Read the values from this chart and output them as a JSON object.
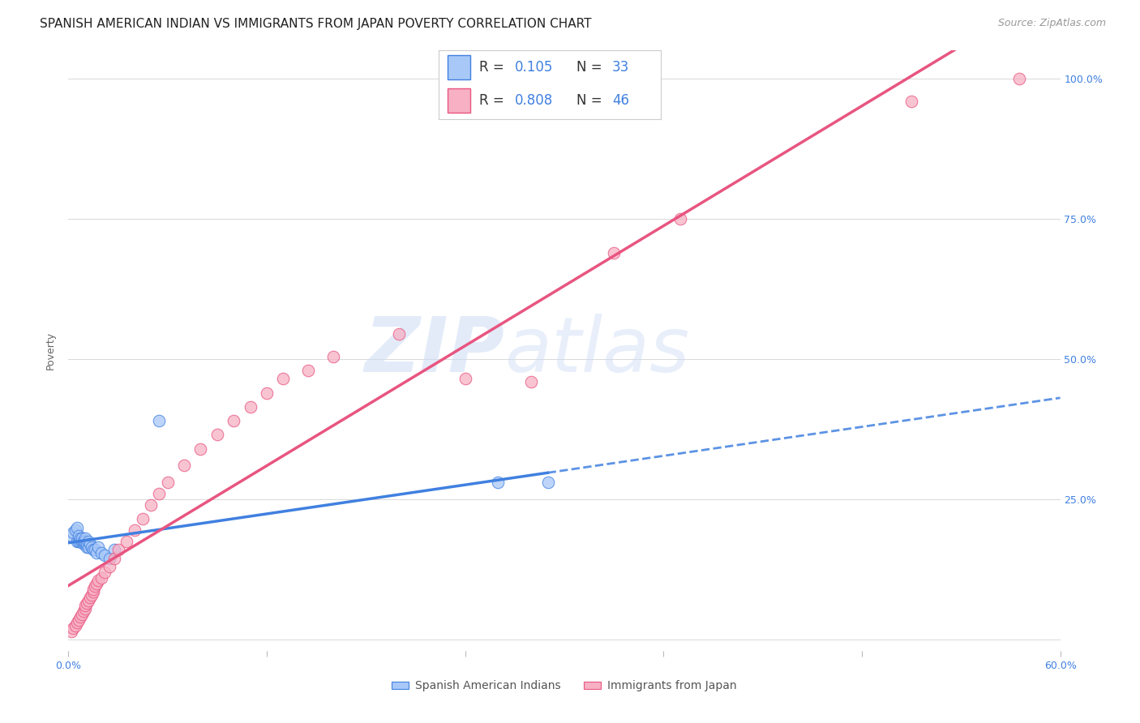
{
  "title": "SPANISH AMERICAN INDIAN VS IMMIGRANTS FROM JAPAN POVERTY CORRELATION CHART",
  "source": "Source: ZipAtlas.com",
  "ylabel": "Poverty",
  "xlim": [
    0.0,
    0.6
  ],
  "ylim": [
    -0.02,
    1.05
  ],
  "xticks": [
    0.0,
    0.12,
    0.24,
    0.36,
    0.48,
    0.6
  ],
  "xtick_labels": [
    "0.0%",
    "",
    "",
    "",
    "",
    "60.0%"
  ],
  "yticks": [
    0.0,
    0.25,
    0.5,
    0.75,
    1.0
  ],
  "ytick_labels": [
    "",
    "25.0%",
    "50.0%",
    "75.0%",
    "100.0%"
  ],
  "blue_color": "#a8c8f8",
  "pink_color": "#f7b0c4",
  "blue_line_color": "#4080e0",
  "pink_line_color": "#e85580",
  "grid_color": "#d8d8d8",
  "watermark1": "ZIP",
  "watermark2": "atlas",
  "series1_x": [
    0.002,
    0.003,
    0.004,
    0.005,
    0.005,
    0.006,
    0.006,
    0.007,
    0.007,
    0.008,
    0.008,
    0.009,
    0.009,
    0.01,
    0.01,
    0.01,
    0.011,
    0.011,
    0.012,
    0.012,
    0.013,
    0.014,
    0.015,
    0.016,
    0.017,
    0.018,
    0.02,
    0.022,
    0.025,
    0.028,
    0.055,
    0.26,
    0.29
  ],
  "series1_y": [
    0.185,
    0.19,
    0.195,
    0.175,
    0.2,
    0.175,
    0.185,
    0.175,
    0.18,
    0.175,
    0.18,
    0.17,
    0.175,
    0.17,
    0.175,
    0.18,
    0.165,
    0.17,
    0.165,
    0.175,
    0.17,
    0.165,
    0.16,
    0.16,
    0.155,
    0.165,
    0.155,
    0.15,
    0.145,
    0.16,
    0.39,
    0.28,
    0.28
  ],
  "series2_x": [
    0.002,
    0.003,
    0.004,
    0.005,
    0.006,
    0.007,
    0.008,
    0.009,
    0.01,
    0.01,
    0.011,
    0.012,
    0.013,
    0.014,
    0.015,
    0.015,
    0.016,
    0.017,
    0.018,
    0.02,
    0.022,
    0.025,
    0.028,
    0.03,
    0.035,
    0.04,
    0.045,
    0.05,
    0.055,
    0.06,
    0.07,
    0.08,
    0.09,
    0.1,
    0.11,
    0.12,
    0.13,
    0.145,
    0.16,
    0.2,
    0.24,
    0.28,
    0.33,
    0.37,
    0.51,
    0.575
  ],
  "series2_y": [
    0.015,
    0.02,
    0.025,
    0.03,
    0.035,
    0.04,
    0.045,
    0.05,
    0.055,
    0.06,
    0.065,
    0.07,
    0.075,
    0.08,
    0.085,
    0.09,
    0.095,
    0.1,
    0.105,
    0.11,
    0.12,
    0.13,
    0.145,
    0.16,
    0.175,
    0.195,
    0.215,
    0.24,
    0.26,
    0.28,
    0.31,
    0.34,
    0.365,
    0.39,
    0.415,
    0.44,
    0.465,
    0.48,
    0.505,
    0.545,
    0.465,
    0.46,
    0.69,
    0.75,
    0.96,
    1.0
  ],
  "title_fontsize": 11,
  "source_fontsize": 9,
  "axis_label_fontsize": 9,
  "tick_fontsize": 9,
  "legend_fontsize": 12,
  "marker_size": 110
}
